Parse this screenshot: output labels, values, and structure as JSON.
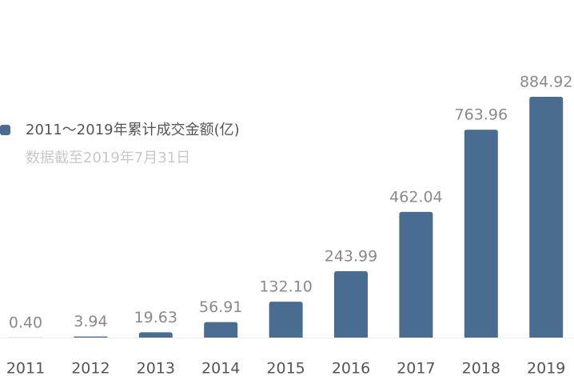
{
  "chart_data": {
    "type": "bar",
    "subtitle": "数据截至2019年7月31日",
    "categories": [
      "2011",
      "2012",
      "2013",
      "2014",
      "2015",
      "2016",
      "2017",
      "2018",
      "2019"
    ],
    "series": [
      {
        "name": "2011～2019年累计成交金额(亿)",
        "color": "#4b6c91",
        "values": [
          0.4,
          3.94,
          19.63,
          56.91,
          132.1,
          243.99,
          462.04,
          763.96,
          884.92
        ],
        "value_labels": [
          "0.40",
          "3.94",
          "19.63",
          "56.91",
          "132.10",
          "243.99",
          "462.04",
          "763.96",
          "884.92"
        ]
      }
    ]
  }
}
